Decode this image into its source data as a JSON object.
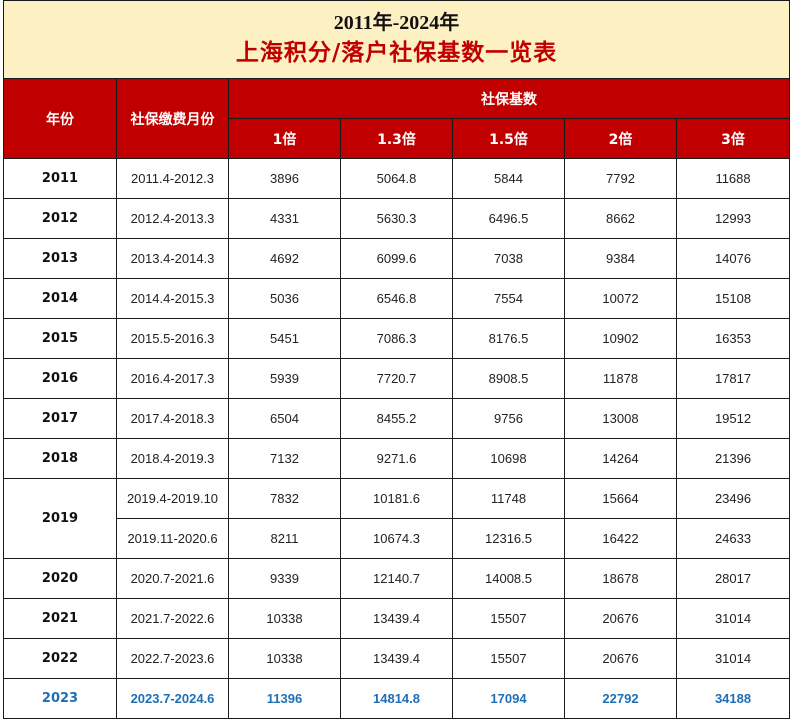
{
  "title": {
    "line1": "2011年-2024年",
    "line2": "上海积分/落户社保基数一览表"
  },
  "headers": {
    "year": "年份",
    "months": "社保缴费月份",
    "base_group": "社保基数",
    "multiples": [
      "1倍",
      "1.3倍",
      "1.5倍",
      "2倍",
      "3倍"
    ]
  },
  "rows": [
    {
      "year": "2011",
      "period": "2011.4-2012.3",
      "values": [
        "3896",
        "5064.8",
        "5844",
        "7792",
        "11688"
      ]
    },
    {
      "year": "2012",
      "period": "2012.4-2013.3",
      "values": [
        "4331",
        "5630.3",
        "6496.5",
        "8662",
        "12993"
      ]
    },
    {
      "year": "2013",
      "period": "2013.4-2014.3",
      "values": [
        "4692",
        "6099.6",
        "7038",
        "9384",
        "14076"
      ]
    },
    {
      "year": "2014",
      "period": "2014.4-2015.3",
      "values": [
        "5036",
        "6546.8",
        "7554",
        "10072",
        "15108"
      ]
    },
    {
      "year": "2015",
      "period": "2015.5-2016.3",
      "values": [
        "5451",
        "7086.3",
        "8176.5",
        "10902",
        "16353"
      ]
    },
    {
      "year": "2016",
      "period": "2016.4-2017.3",
      "values": [
        "5939",
        "7720.7",
        "8908.5",
        "11878",
        "17817"
      ]
    },
    {
      "year": "2017",
      "period": "2017.4-2018.3",
      "values": [
        "6504",
        "8455.2",
        "9756",
        "13008",
        "19512"
      ]
    },
    {
      "year": "2018",
      "period": "2018.4-2019.3",
      "values": [
        "7132",
        "9271.6",
        "10698",
        "14264",
        "21396"
      ]
    },
    {
      "year": "2019",
      "period": "2019.4-2019.10",
      "values": [
        "7832",
        "10181.6",
        "11748",
        "15664",
        "23496"
      ]
    },
    {
      "year": "",
      "period": "2019.11-2020.6",
      "values": [
        "8211",
        "10674.3",
        "12316.5",
        "16422",
        "24633"
      ]
    },
    {
      "year": "2020",
      "period": "2020.7-2021.6",
      "values": [
        "9339",
        "12140.7",
        "14008.5",
        "18678",
        "28017"
      ]
    },
    {
      "year": "2021",
      "period": "2021.7-2022.6",
      "values": [
        "10338",
        "13439.4",
        "15507",
        "20676",
        "31014"
      ]
    },
    {
      "year": "2022",
      "period": "2022.7-2023.6",
      "values": [
        "10338",
        "13439.4",
        "15507",
        "20676",
        "31014"
      ]
    },
    {
      "year": "2023",
      "period": "2023.7-2024.6",
      "values": [
        "11396",
        "14814.8",
        "17094",
        "22792",
        "34188"
      ]
    }
  ],
  "colors": {
    "title_bg": "#fdf0c2",
    "title_red": "#c00000",
    "header_bg": "#c00000",
    "highlight_text": "#1f6fb5"
  }
}
